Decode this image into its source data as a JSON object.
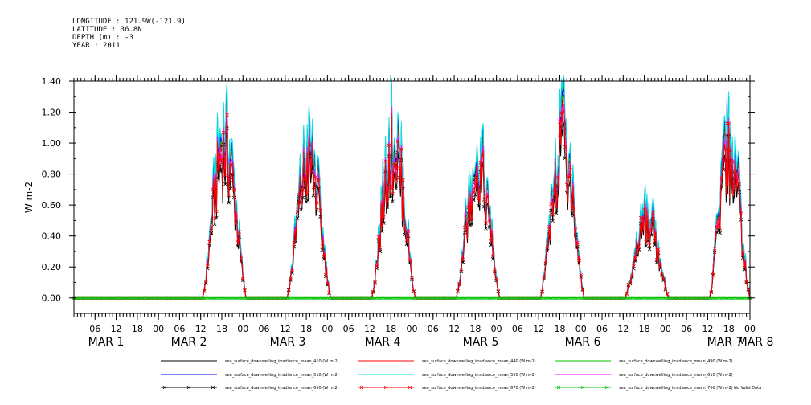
{
  "header": {
    "longitude": "LONGITUDE : 121.9W(-121.9)",
    "latitude": "LATITUDE : 36.8N",
    "depth": "DEPTH (m) : -3",
    "year": "YEAR : 2011"
  },
  "chart_data": {
    "type": "line",
    "title": "",
    "xlabel": "",
    "ylabel": "W m-2",
    "ylim": [
      -0.1,
      1.4
    ],
    "yticks": [
      0.0,
      0.2,
      0.4,
      0.6,
      0.8,
      1.0,
      1.2,
      1.4
    ],
    "ytick_labels": [
      "0.00",
      "0.20",
      "0.40",
      "0.60",
      "0.80",
      "1.00",
      "1.20",
      "1.40"
    ],
    "x_range_hours": [
      -24,
      168
    ],
    "hour_ticks": [
      {
        "h": -18,
        "label": "06"
      },
      {
        "h": -12,
        "label": "12"
      },
      {
        "h": -6,
        "label": "18"
      },
      {
        "h": 0,
        "label": "00"
      },
      {
        "h": 6,
        "label": "06"
      },
      {
        "h": 12,
        "label": "12"
      },
      {
        "h": 18,
        "label": "18"
      },
      {
        "h": 24,
        "label": "00"
      },
      {
        "h": 30,
        "label": "06"
      },
      {
        "h": 36,
        "label": "12"
      },
      {
        "h": 42,
        "label": "18"
      },
      {
        "h": 48,
        "label": "00"
      },
      {
        "h": 54,
        "label": "06"
      },
      {
        "h": 60,
        "label": "12"
      },
      {
        "h": 66,
        "label": "18"
      },
      {
        "h": 72,
        "label": "00"
      },
      {
        "h": 78,
        "label": "06"
      },
      {
        "h": 84,
        "label": "12"
      },
      {
        "h": 90,
        "label": "18"
      },
      {
        "h": 96,
        "label": "00"
      },
      {
        "h": 102,
        "label": "06"
      },
      {
        "h": 108,
        "label": "12"
      },
      {
        "h": 114,
        "label": "18"
      },
      {
        "h": 120,
        "label": "00"
      },
      {
        "h": 126,
        "label": "06"
      },
      {
        "h": 132,
        "label": "12"
      },
      {
        "h": 138,
        "label": "18"
      },
      {
        "h": 144,
        "label": "00"
      },
      {
        "h": 150,
        "label": "06"
      },
      {
        "h": 156,
        "label": "12"
      },
      {
        "h": 162,
        "label": "18"
      },
      {
        "h": 168,
        "label": "00"
      }
    ],
    "day_labels": [
      {
        "h": -5,
        "label": "MAR   1"
      },
      {
        "h": 7,
        "label": "MAR   2"
      },
      {
        "h": 19,
        "label": "MAR   3"
      },
      {
        "h": 31,
        "label": "MAR   4"
      },
      {
        "h": 43,
        "label": "MAR   5"
      },
      {
        "h": 55,
        "label": "MAR   6"
      },
      {
        "h": 69,
        "label": "MAR   7"
      },
      {
        "h": 79,
        "label": "MAR   8"
      }
    ],
    "day_peaks": [
      {
        "center_h": 18.5,
        "start_h": 12.5,
        "end_h": 25.0,
        "peak": 1.05
      },
      {
        "center_h": 42.5,
        "start_h": 36.5,
        "end_h": 49.0,
        "peak": 0.95
      },
      {
        "center_h": 66.5,
        "start_h": 60.5,
        "end_h": 73.0,
        "peak": 1.05
      },
      {
        "center_h": 90.5,
        "start_h": 84.5,
        "end_h": 97.0,
        "peak": 0.92
      },
      {
        "center_h": 114.5,
        "start_h": 108.5,
        "end_h": 121.0,
        "peak": 1.05
      },
      {
        "center_h": 138.5,
        "start_h": 132.5,
        "end_h": 145.0,
        "peak": 0.55
      },
      {
        "center_h": 162.0,
        "start_h": 156.5,
        "end_h": 168.0,
        "peak": 1.0
      }
    ],
    "series": [
      {
        "name": "sea_surface_downwelling_irradiance_mean_410 (W m-2)",
        "color": "#000000",
        "scale": 1.08,
        "marker": "none"
      },
      {
        "name": "sea_surface_downwelling_irradiance_mean_440 (W m-2)",
        "color": "#ff0000",
        "scale": 1.05,
        "marker": "none"
      },
      {
        "name": "sea_surface_downwelling_irradiance_mean_490 (W m-2)",
        "color": "#00c000",
        "scale": 1.1,
        "marker": "none"
      },
      {
        "name": "sea_surface_downwelling_irradiance_mean_510 (W m-2)",
        "color": "#0000ff",
        "scale": 1.12,
        "marker": "none"
      },
      {
        "name": "sea_surface_downwelling_irradiance_mean_550 (W m-2)",
        "color": "#00e0e0",
        "scale": 1.15,
        "marker": "none"
      },
      {
        "name": "sea_surface_downwelling_irradiance_mean_610 (W m-2)",
        "color": "#ff00ff",
        "scale": 1.0,
        "marker": "none"
      },
      {
        "name": "sea_surface_downwelling_irradiance_mean_650 (W m-2)",
        "color": "#000000",
        "scale": 0.9,
        "marker": "x"
      },
      {
        "name": "sea_surface_downwelling_irradiance_mean_670 (W m-2)",
        "color": "#ff0000",
        "scale": 0.97,
        "marker": "x"
      },
      {
        "name": "sea_surface_downwelling_irradiance_mean_700 (W m-2) No Valid Data",
        "color": "#00c000",
        "scale": 0,
        "marker": "x"
      }
    ],
    "grid": false,
    "legend_position": "bottom"
  }
}
